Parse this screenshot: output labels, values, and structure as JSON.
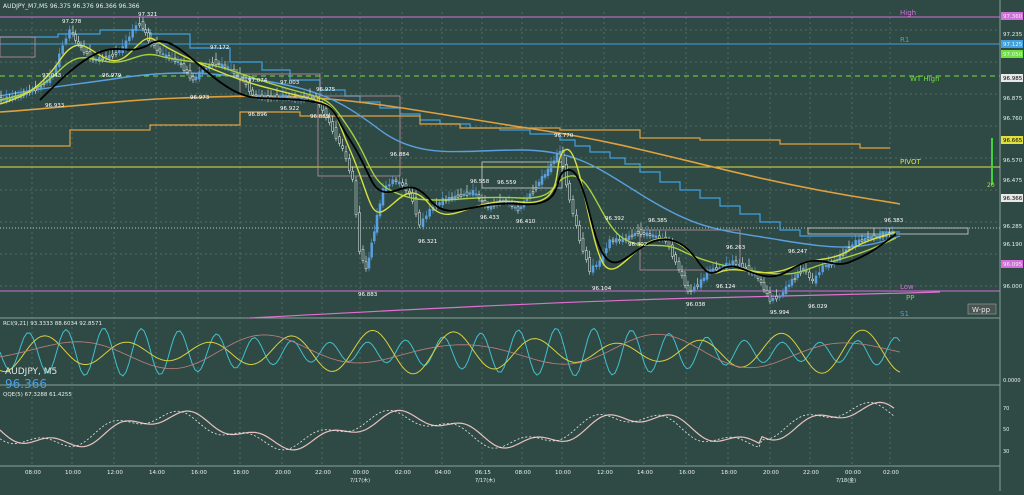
{
  "header": {
    "title": "AUDJPY_M7,M5  96.375 96.376 96.366 96.366"
  },
  "main_axis": {
    "ticks": [
      "97.360",
      "97.235",
      "97.125",
      "97.050",
      "96.985",
      "96.875",
      "96.760",
      "96.665",
      "96.570",
      "96.475",
      "96.366",
      "96.285",
      "96.190",
      "96.095",
      "96.000"
    ]
  },
  "level_labels": [
    {
      "text": "High",
      "color": "#d070d8"
    },
    {
      "text": "R1",
      "color": "#40a0e0"
    },
    {
      "text": "WT High",
      "color": "#70e040"
    },
    {
      "text": "PIVOT",
      "color": "#e0e040"
    },
    {
      "text": "Low",
      "color": "#d070d8"
    },
    {
      "text": "PP",
      "color": "#70e040"
    },
    {
      "text": "S1",
      "color": "#40a0e0"
    }
  ],
  "zone_label": "20",
  "wpp_label": "W-pp",
  "price_annotations": [
    "97.278",
    "97.321",
    "97.043",
    "96.933",
    "96.979",
    "97.172",
    "96.973",
    "97.074",
    "97.003",
    "96.896",
    "96.922",
    "96.975",
    "96.889",
    "96.884",
    "96.883",
    "96.321",
    "96.558",
    "96.559",
    "96.433",
    "96.410",
    "96.770",
    "96.392",
    "96.385",
    "96.302",
    "96.104",
    "96.038",
    "96.124",
    "96.263",
    "96.247",
    "95.994",
    "96.029",
    "96.383"
  ],
  "rci_panel": {
    "title": "RCI(9,21) 93.3333 88.6034 92.8571",
    "ticks": [
      "",
      "0.0000"
    ]
  },
  "symbol_overlay": {
    "symbol": "AUDJPY, M5",
    "price": "96.366"
  },
  "qqe_panel": {
    "title": "QQE(5) 67.3288 61.4255",
    "ticks": [
      "70",
      "50",
      "30"
    ]
  },
  "time_axis": {
    "ticks": [
      "08:00",
      "10:00",
      "12:00",
      "14:00",
      "16:00",
      "18:00",
      "20:00",
      "22:00",
      "00:00",
      "02:00",
      "04:00",
      "06:15",
      "08:00",
      "10:00",
      "12:00",
      "14:00",
      "16:00",
      "18:00",
      "20:00",
      "22:00",
      "00:00",
      "02:00"
    ],
    "dates": [
      "7/17(木)",
      "7/17(木)",
      "7/18(金)"
    ]
  },
  "colors": {
    "background": "#2f4a44",
    "grid": "#4a6660",
    "bull_candle": "#5aa0e0",
    "black_ma": "#000000",
    "yellow_ma": "#d8e040",
    "orange_ma": "#e0a040",
    "pink_ma": "#e070d0"
  }
}
